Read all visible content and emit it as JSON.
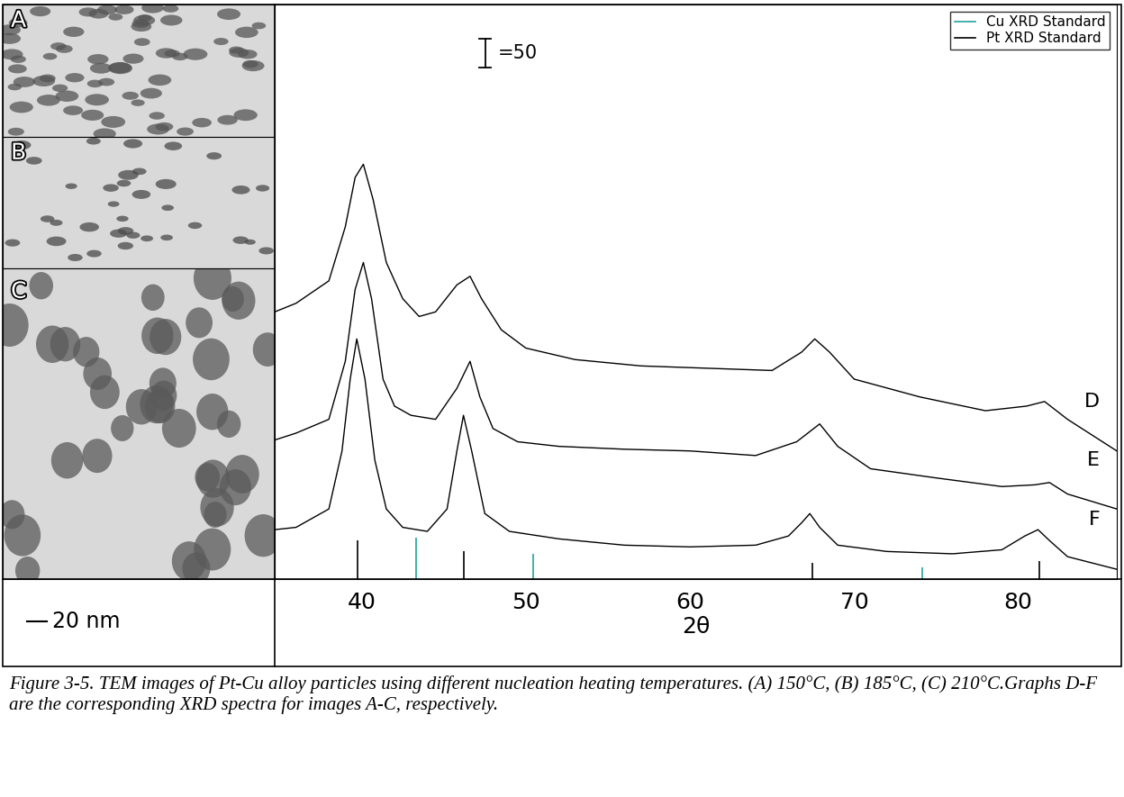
{
  "tem_images": [
    {
      "label": "A"
    },
    {
      "label": "B"
    },
    {
      "label": "C"
    }
  ],
  "tem_scale_bar": "20 nm",
  "chart_data": {
    "type": "line",
    "xlabel": "2θ",
    "xlim": [
      34.7,
      86
    ],
    "xticks": [
      40,
      50,
      60,
      70,
      80
    ],
    "ylim": [
      0,
      1000
    ],
    "tick_labels": "x",
    "legend": "upper right",
    "scale_bar": {
      "value": 50,
      "label": "=50"
    },
    "series": [
      {
        "name": "D",
        "type": "line",
        "color": "#000000",
        "line_style": "solid",
        "x": [
          34.7,
          36,
          38,
          39,
          39.6,
          40.1,
          40.7,
          41.5,
          42.5,
          43.5,
          44.5,
          45.8,
          46.6,
          47.3,
          48.5,
          50,
          53,
          57,
          61,
          65,
          66.8,
          67.6,
          68.5,
          70,
          74,
          78,
          80.5,
          81.6,
          83,
          86
        ],
        "values": [
          465,
          480,
          519,
          613,
          699,
          722,
          660,
          551,
          488,
          457,
          465,
          512,
          527,
          488,
          434,
          402,
          382,
          371,
          367,
          363,
          395,
          418,
          395,
          348,
          317,
          293,
          301,
          309,
          278,
          223
        ]
      },
      {
        "name": "E",
        "type": "line",
        "color": "#000000",
        "line_style": "solid",
        "x": [
          34.7,
          36,
          38,
          39,
          39.6,
          40.1,
          40.6,
          41.3,
          42,
          43,
          44.5,
          45.8,
          46.6,
          47.2,
          48,
          49.5,
          52,
          56,
          60,
          64,
          66.5,
          67.9,
          69,
          71,
          75,
          79,
          81,
          81.9,
          83,
          86
        ],
        "values": [
          242,
          254,
          278,
          379,
          504,
          551,
          488,
          348,
          301,
          285,
          278,
          332,
          379,
          317,
          262,
          239,
          231,
          226,
          223,
          215,
          239,
          270,
          231,
          192,
          176,
          161,
          164,
          168,
          148,
          122
        ]
      },
      {
        "name": "F",
        "type": "line",
        "color": "#000000",
        "line_style": "solid",
        "x": [
          34.7,
          36,
          38,
          38.8,
          39.3,
          39.7,
          40.2,
          40.8,
          41.5,
          42.5,
          44,
          45.2,
          45.8,
          46.2,
          46.7,
          47.5,
          49,
          52,
          56,
          60,
          64,
          66,
          66.8,
          67.3,
          67.9,
          69,
          72,
          76,
          79,
          80.4,
          81.2,
          81.9,
          83,
          86
        ],
        "values": [
          86,
          90,
          122,
          223,
          348,
          418,
          348,
          207,
          122,
          90,
          83,
          122,
          223,
          285,
          223,
          114,
          83,
          70,
          59,
          56,
          59,
          75,
          98,
          114,
          90,
          59,
          48,
          44,
          51,
          75,
          86,
          67,
          39,
          17
        ]
      },
      {
        "name": "Cu XRD Standard",
        "type": "stem",
        "color": "#20a39e",
        "line_style": "solid",
        "x": [
          43.3,
          50.43,
          74.13
        ],
        "values": [
          72,
          44,
          20
        ]
      },
      {
        "name": "Pt XRD Standard",
        "type": "stem",
        "color": "#000000",
        "line_style": "solid",
        "x": [
          39.76,
          46.24,
          67.45,
          81.29
        ],
        "values": [
          67,
          48,
          28,
          31
        ]
      }
    ]
  },
  "caption": "Figure 3-5. TEM images of Pt-Cu alloy particles using different nucleation heating temperatures. (A) 150°C, (B) 185°C, (C) 210°C.Graphs D-F are the corresponding XRD spectra for images A-C, respectively."
}
